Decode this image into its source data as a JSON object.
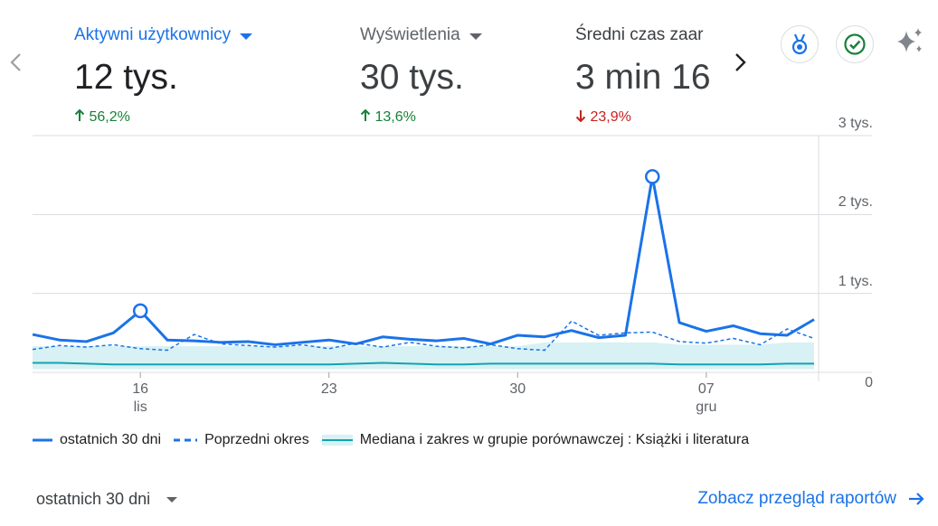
{
  "metrics": [
    {
      "title": "Aktywni użytkownicy",
      "value": "12 tys.",
      "change": "56,2%",
      "direction": "up",
      "active": true
    },
    {
      "title": "Wyświetlenia",
      "value": "30 tys.",
      "change": "13,6%",
      "direction": "up",
      "active": false
    },
    {
      "title": "Średni czas zaar",
      "value": "3 min 16",
      "change": "23,9%",
      "direction": "down",
      "active": false
    }
  ],
  "icons": {
    "nav_prev": "chevron-left-icon",
    "nav_next": "chevron-right-icon",
    "benchmark": "medal-icon",
    "check": "check-circle-icon",
    "insights": "sparkle-icon"
  },
  "colors": {
    "primary": "#1a73e8",
    "median": "#12a4af",
    "band": "#d7f1f4",
    "positive": "#188038",
    "negative": "#c5221f"
  },
  "chart_data": {
    "type": "line",
    "x_tick_labels": [
      {
        "label": "16",
        "sub": "lis"
      },
      {
        "label": "23",
        "sub": ""
      },
      {
        "label": "30",
        "sub": ""
      },
      {
        "label": "07",
        "sub": "gru"
      }
    ],
    "y_tick_labels": [
      "3 tys.",
      "2 tys.",
      "1 tys.",
      "0"
    ],
    "ylim": [
      0,
      3000
    ],
    "days": 30,
    "series": [
      {
        "name": "ostatnich 30 dni",
        "style": "solid",
        "values": [
          480,
          410,
          390,
          500,
          780,
          410,
          400,
          380,
          390,
          350,
          380,
          410,
          360,
          450,
          420,
          400,
          430,
          360,
          470,
          450,
          530,
          440,
          470,
          2480,
          630,
          520,
          590,
          490,
          470,
          670
        ],
        "markers": [
          4,
          23
        ]
      },
      {
        "name": "Poprzedni okres",
        "style": "dashed",
        "values": [
          290,
          340,
          320,
          350,
          300,
          280,
          480,
          360,
          340,
          320,
          350,
          300,
          370,
          320,
          380,
          330,
          310,
          350,
          300,
          280,
          650,
          470,
          500,
          510,
          390,
          370,
          430,
          350,
          550,
          430
        ]
      },
      {
        "name": "Mediana i zakres w grupie porównawczej : Książki i literatura",
        "style": "band",
        "median": [
          120,
          120,
          110,
          100,
          100,
          100,
          100,
          100,
          100,
          100,
          100,
          100,
          110,
          120,
          110,
          100,
          100,
          110,
          110,
          110,
          110,
          110,
          110,
          110,
          100,
          100,
          100,
          100,
          110,
          110
        ],
        "band_upper": [
          330,
          330,
          330,
          330,
          330,
          330,
          330,
          330,
          330,
          330,
          330,
          330,
          330,
          330,
          330,
          330,
          330,
          330,
          330,
          380,
          380,
          380,
          380,
          380,
          350,
          350,
          350,
          350,
          380,
          380
        ],
        "band_lower": [
          40,
          40,
          40,
          40,
          40,
          40,
          40,
          40,
          40,
          40,
          40,
          40,
          40,
          40,
          40,
          40,
          40,
          40,
          40,
          40,
          40,
          40,
          40,
          40,
          40,
          40,
          40,
          40,
          40,
          40
        ]
      }
    ],
    "grid": true,
    "legend_position": "bottom"
  },
  "footer": {
    "range_label": "ostatnich 30 dni",
    "report_link": "Zobacz przegląd raportów"
  }
}
